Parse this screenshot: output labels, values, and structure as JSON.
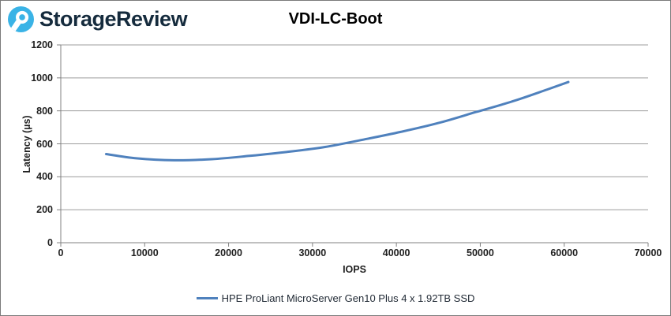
{
  "header": {
    "logo_text": "StorageReview",
    "logo_text_color": "#152B3D",
    "logo_icon": "storagereview-droplet-icon",
    "logo_icon_color": "#3AB3E6"
  },
  "chart_data": {
    "type": "line",
    "title": "VDI-LC-Boot",
    "xlabel": "IOPS",
    "ylabel": "Latency (µs)",
    "xlim": [
      0,
      70000
    ],
    "ylim": [
      0,
      1200
    ],
    "x_ticks": [
      0,
      10000,
      20000,
      30000,
      40000,
      50000,
      60000,
      70000
    ],
    "y_ticks": [
      0,
      200,
      400,
      600,
      800,
      1000,
      1200
    ],
    "grid": "horizontal-only",
    "grid_color": "#9c9c9c",
    "axis_color": "#808080",
    "line_color": "#4F81BD",
    "legend_position": "bottom",
    "series": [
      {
        "name": "HPE ProLiant MicroServer Gen10 Plus 4 x 1.92TB SSD",
        "points": [
          [
            5400,
            538
          ],
          [
            9000,
            512
          ],
          [
            13500,
            500
          ],
          [
            18000,
            507
          ],
          [
            22500,
            527
          ],
          [
            27000,
            551
          ],
          [
            31500,
            581
          ],
          [
            36000,
            625
          ],
          [
            40500,
            672
          ],
          [
            45000,
            726
          ],
          [
            49500,
            793
          ],
          [
            54000,
            860
          ],
          [
            58000,
            930
          ],
          [
            60500,
            975
          ]
        ]
      }
    ]
  }
}
